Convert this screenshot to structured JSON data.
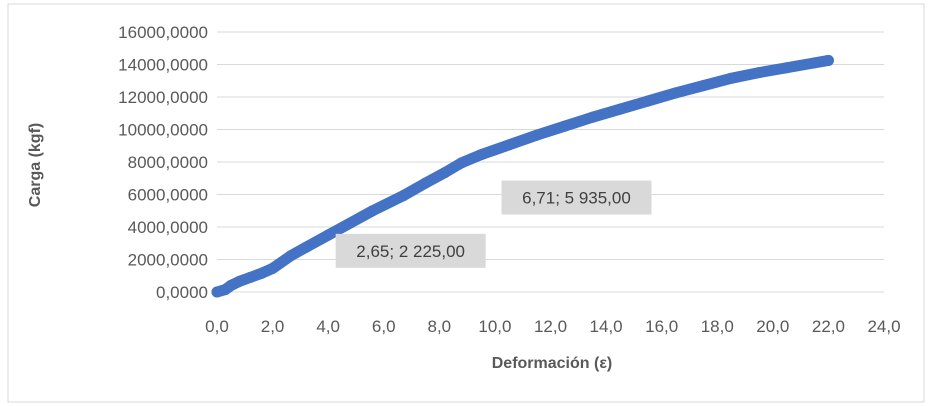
{
  "chart_data": {
    "type": "scatter",
    "title": "",
    "xlabel": "Deformación (ε)",
    "ylabel": "Carga (kgf)",
    "xlim": [
      0,
      24
    ],
    "ylim": [
      0,
      16000
    ],
    "x_ticks": [
      "0,0",
      "2,0",
      "4,0",
      "6,0",
      "8,0",
      "10,0",
      "12,0",
      "14,0",
      "16,0",
      "18,0",
      "20,0",
      "22,0",
      "24,0"
    ],
    "y_ticks": [
      "0,0000",
      "2000,0000",
      "4000,0000",
      "6000,0000",
      "8000,0000",
      "10000,0000",
      "12000,0000",
      "14000,0000",
      "16000,0000"
    ],
    "x_tick_values": [
      0,
      2,
      4,
      6,
      8,
      10,
      12,
      14,
      16,
      18,
      20,
      22,
      24
    ],
    "y_tick_values": [
      0,
      2000,
      4000,
      6000,
      8000,
      10000,
      12000,
      14000,
      16000
    ],
    "grid": {
      "horizontal": true,
      "vertical": false
    },
    "legend": "none",
    "series": [
      {
        "color": "#4472C4",
        "x": [
          0.0,
          0.3,
          0.5,
          0.8,
          1.2,
          1.6,
          2.0,
          2.65,
          3.2,
          4.0,
          4.8,
          5.6,
          6.71,
          7.5,
          8.2,
          8.8,
          9.5,
          10.5,
          11.5,
          12.5,
          13.5,
          14.5,
          15.5,
          16.5,
          17.5,
          18.5,
          19.5,
          20.5,
          21.5,
          22.0
        ],
        "y": [
          0,
          150,
          400,
          650,
          900,
          1150,
          1450,
          2225,
          2750,
          3500,
          4250,
          5000,
          5935,
          6700,
          7350,
          7950,
          8450,
          9050,
          9650,
          10200,
          10750,
          11250,
          11750,
          12250,
          12700,
          13150,
          13500,
          13800,
          14100,
          14250
        ]
      }
    ],
    "annotations": [
      {
        "text": "6,71; 5 935,00",
        "x": 6.71,
        "y": 5935
      },
      {
        "text": "2,65; 2 225,00",
        "x": 2.65,
        "y": 2225
      }
    ],
    "colors": {
      "series": "#4472C4",
      "grid": "#D9D9D9",
      "annotation_bg": "#D9D9D9",
      "border": "#D9D9D9"
    }
  }
}
